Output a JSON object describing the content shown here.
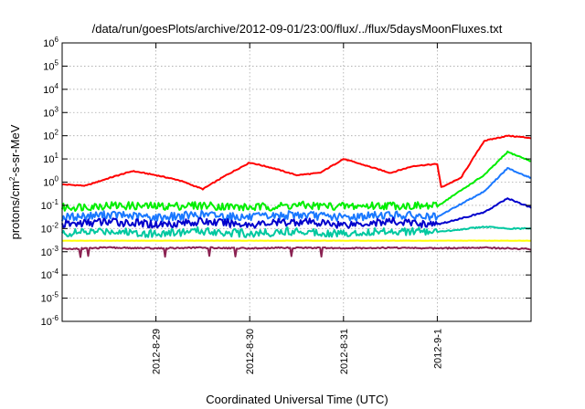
{
  "chart_data": {
    "type": "line",
    "title": "/data/run/goesPlots/archive/2012-09-01/23:00/flux/../flux/5daysMoonFluxes.txt",
    "xlabel": "Coordinated Universal Time (UTC)",
    "ylabel": {
      "base": "protons/cm",
      "sup": "2",
      "rest": "-s-sr-MeV"
    },
    "yscale": "log",
    "ylim": [
      1e-06,
      1000000.0
    ],
    "xlim": [
      "2012-08-28 00:00",
      "2012-09-02 00:00"
    ],
    "grid": true,
    "legend": "none",
    "y_ticks": [
      {
        "value": 1e-06,
        "base": "10",
        "exp": "-6"
      },
      {
        "value": 1e-05,
        "base": "10",
        "exp": "-5"
      },
      {
        "value": 0.0001,
        "base": "10",
        "exp": "-4"
      },
      {
        "value": 0.001,
        "base": "10",
        "exp": "-3"
      },
      {
        "value": 0.01,
        "base": "10",
        "exp": "-2"
      },
      {
        "value": 0.1,
        "base": "10",
        "exp": "-1"
      },
      {
        "value": 1.0,
        "base": "10",
        "exp": "0"
      },
      {
        "value": 10.0,
        "base": "10",
        "exp": "1"
      },
      {
        "value": 100.0,
        "base": "10",
        "exp": "2"
      },
      {
        "value": 1000.0,
        "base": "10",
        "exp": "3"
      },
      {
        "value": 10000.0,
        "base": "10",
        "exp": "4"
      },
      {
        "value": 100000.0,
        "base": "10",
        "exp": "5"
      },
      {
        "value": 1000000.0,
        "base": "10",
        "exp": "6"
      }
    ],
    "x_ticks": [
      {
        "x": "2012-08-29 00:00",
        "label": "2012-8-29"
      },
      {
        "x": "2012-08-30 00:00",
        "label": "2012-8-30"
      },
      {
        "x": "2012-08-31 00:00",
        "label": "2012-8-31"
      },
      {
        "x": "2012-09-01 00:00",
        "label": "2012-9-1"
      }
    ],
    "series": [
      {
        "color": "#ff0000",
        "points": [
          [
            "2012-08-28 00:00",
            0.8
          ],
          [
            "2012-08-28 06:00",
            0.7
          ],
          [
            "2012-08-28 12:00",
            1.5
          ],
          [
            "2012-08-28 18:00",
            3
          ],
          [
            "2012-08-29 00:00",
            2
          ],
          [
            "2012-08-29 06:00",
            1.2
          ],
          [
            "2012-08-29 12:00",
            0.5
          ],
          [
            "2012-08-29 18:00",
            2
          ],
          [
            "2012-08-30 00:00",
            7
          ],
          [
            "2012-08-30 06:00",
            4
          ],
          [
            "2012-08-30 12:00",
            2
          ],
          [
            "2012-08-30 18:00",
            2.5
          ],
          [
            "2012-08-31 00:00",
            10
          ],
          [
            "2012-08-31 06:00",
            5
          ],
          [
            "2012-08-31 12:00",
            2.5
          ],
          [
            "2012-08-31 18:00",
            5
          ],
          [
            "2012-09-01 00:00",
            6
          ],
          [
            "2012-09-01 01:00",
            0.6
          ],
          [
            "2012-09-01 06:00",
            1.5
          ],
          [
            "2012-09-01 12:00",
            60
          ],
          [
            "2012-09-01 18:00",
            100
          ],
          [
            "2012-09-02 00:00",
            80
          ]
        ]
      },
      {
        "color": "#00ee00",
        "points": [
          [
            "2012-08-28 00:00",
            0.08
          ],
          [
            "2012-08-28 12:00",
            0.1
          ],
          [
            "2012-08-29 00:00",
            0.09
          ],
          [
            "2012-08-29 12:00",
            0.1
          ],
          [
            "2012-08-30 00:00",
            0.08
          ],
          [
            "2012-08-30 12:00",
            0.1
          ],
          [
            "2012-08-31 00:00",
            0.09
          ],
          [
            "2012-08-31 12:00",
            0.1
          ],
          [
            "2012-09-01 00:00",
            0.09
          ],
          [
            "2012-09-01 03:00",
            0.2
          ],
          [
            "2012-09-01 12:00",
            2
          ],
          [
            "2012-09-01 18:00",
            20
          ],
          [
            "2012-09-02 00:00",
            8
          ]
        ]
      },
      {
        "color": "#1a78ff",
        "points": [
          [
            "2012-08-28 00:00",
            0.03
          ],
          [
            "2012-08-28 12:00",
            0.04
          ],
          [
            "2012-08-29 00:00",
            0.03
          ],
          [
            "2012-08-29 12:00",
            0.04
          ],
          [
            "2012-08-30 00:00",
            0.03
          ],
          [
            "2012-08-30 12:00",
            0.04
          ],
          [
            "2012-08-31 00:00",
            0.03
          ],
          [
            "2012-08-31 12:00",
            0.04
          ],
          [
            "2012-09-01 00:00",
            0.03
          ],
          [
            "2012-09-01 03:00",
            0.06
          ],
          [
            "2012-09-01 12:00",
            0.4
          ],
          [
            "2012-09-01 18:00",
            4
          ],
          [
            "2012-09-02 00:00",
            1.5
          ]
        ]
      },
      {
        "color": "#0000cc",
        "points": [
          [
            "2012-08-28 00:00",
            0.015
          ],
          [
            "2012-08-28 12:00",
            0.02
          ],
          [
            "2012-08-29 00:00",
            0.015
          ],
          [
            "2012-08-29 12:00",
            0.02
          ],
          [
            "2012-08-30 00:00",
            0.015
          ],
          [
            "2012-08-30 12:00",
            0.02
          ],
          [
            "2012-08-31 00:00",
            0.015
          ],
          [
            "2012-08-31 12:00",
            0.02
          ],
          [
            "2012-09-01 00:00",
            0.015
          ],
          [
            "2012-09-01 03:00",
            0.02
          ],
          [
            "2012-09-01 12:00",
            0.05
          ],
          [
            "2012-09-01 18:00",
            0.2
          ],
          [
            "2012-09-02 00:00",
            0.08
          ]
        ]
      },
      {
        "color": "#00c8a0",
        "points": [
          [
            "2012-08-28 00:00",
            0.006
          ],
          [
            "2012-08-28 12:00",
            0.008
          ],
          [
            "2012-08-29 00:00",
            0.006
          ],
          [
            "2012-08-29 12:00",
            0.008
          ],
          [
            "2012-08-30 00:00",
            0.006
          ],
          [
            "2012-08-30 12:00",
            0.008
          ],
          [
            "2012-08-31 00:00",
            0.006
          ],
          [
            "2012-08-31 12:00",
            0.008
          ],
          [
            "2012-09-01 00:00",
            0.007
          ],
          [
            "2012-09-01 12:00",
            0.012
          ],
          [
            "2012-09-01 18:00",
            0.01
          ],
          [
            "2012-09-02 00:00",
            0.01
          ]
        ]
      },
      {
        "color": "#ffff00",
        "points": [
          [
            "2012-08-28 00:00",
            0.003
          ],
          [
            "2012-08-29 00:00",
            0.003
          ],
          [
            "2012-08-30 00:00",
            0.003
          ],
          [
            "2012-08-31 00:00",
            0.003
          ],
          [
            "2012-09-01 00:00",
            0.003
          ],
          [
            "2012-09-02 00:00",
            0.003
          ]
        ]
      },
      {
        "color": "#8b2252",
        "points": [
          [
            "2012-08-28 00:00",
            0.0013
          ],
          [
            "2012-08-28 12:00",
            0.0015
          ],
          [
            "2012-08-29 00:00",
            0.0014
          ],
          [
            "2012-08-29 12:00",
            0.0015
          ],
          [
            "2012-08-30 00:00",
            0.0014
          ],
          [
            "2012-08-30 12:00",
            0.0015
          ],
          [
            "2012-08-31 00:00",
            0.0014
          ],
          [
            "2012-08-31 12:00",
            0.0015
          ],
          [
            "2012-09-01 00:00",
            0.0014
          ],
          [
            "2012-09-01 12:00",
            0.0015
          ],
          [
            "2012-09-02 00:00",
            0.0013
          ]
        ]
      }
    ]
  }
}
